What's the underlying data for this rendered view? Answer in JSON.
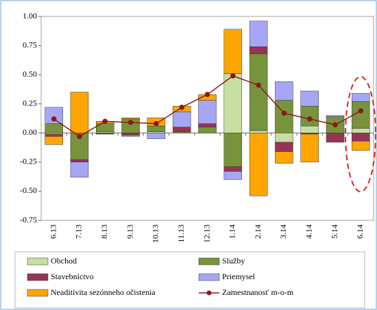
{
  "chart_data": {
    "type": "stacked_bar_line",
    "categories": [
      "6.13",
      "7.13",
      "8.13",
      "9.13",
      "10.13",
      "11.13",
      "12.13",
      "1.14",
      "2.14",
      "3.14",
      "4.14",
      "5.14",
      "6.14"
    ],
    "series": [
      {
        "name": "Obchod",
        "color": "#c6dfa0",
        "values": [
          -0.01,
          0,
          0.01,
          0,
          0.01,
          0,
          0,
          0.51,
          0.02,
          -0.08,
          0.06,
          0,
          0.04
        ]
      },
      {
        "name": "Služby",
        "color": "#77933c",
        "values": [
          0.08,
          -0.23,
          0.07,
          0.12,
          0.05,
          0.01,
          0.05,
          -0.29,
          0.66,
          0.28,
          0.17,
          0.14,
          0.23
        ]
      },
      {
        "name": "Stavebníctvo",
        "color": "#953553",
        "values": [
          -0.02,
          -0.02,
          -0.01,
          -0.02,
          0,
          0.04,
          0.03,
          -0.04,
          0.06,
          -0.08,
          -0.01,
          -0.08,
          -0.07
        ]
      },
      {
        "name": "Priemysel",
        "color": "#a6a6f5",
        "values": [
          0.14,
          -0.13,
          0,
          -0.01,
          -0.05,
          0.13,
          0.2,
          -0.07,
          0.22,
          0.16,
          0.13,
          0.01,
          0.07
        ]
      },
      {
        "name": "Neaditivita sezónneho očistenia",
        "color": "#ffa500",
        "values": [
          -0.07,
          0.35,
          0.02,
          0.01,
          0.07,
          0.05,
          0.05,
          0.38,
          -0.54,
          -0.1,
          -0.24,
          0,
          -0.08
        ]
      }
    ],
    "line": {
      "name": "Zamestnanosť m-o-m",
      "color": "#8b1a1a",
      "values": [
        0.12,
        -0.03,
        0.1,
        0.09,
        0.08,
        0.22,
        0.33,
        0.49,
        0.41,
        0.17,
        0.12,
        0.07,
        0.19
      ]
    },
    "ylim": [
      -0.75,
      1
    ],
    "yticks": [
      {
        "value": 1,
        "label": "1.00"
      },
      0.75,
      {
        "value": 0.5,
        "label": "0.50"
      },
      0.25,
      {
        "value": 0,
        "label": "0.00"
      },
      -0.25,
      {
        "value": -0.5,
        "label": "-0.50"
      },
      -0.75
    ]
  }
}
